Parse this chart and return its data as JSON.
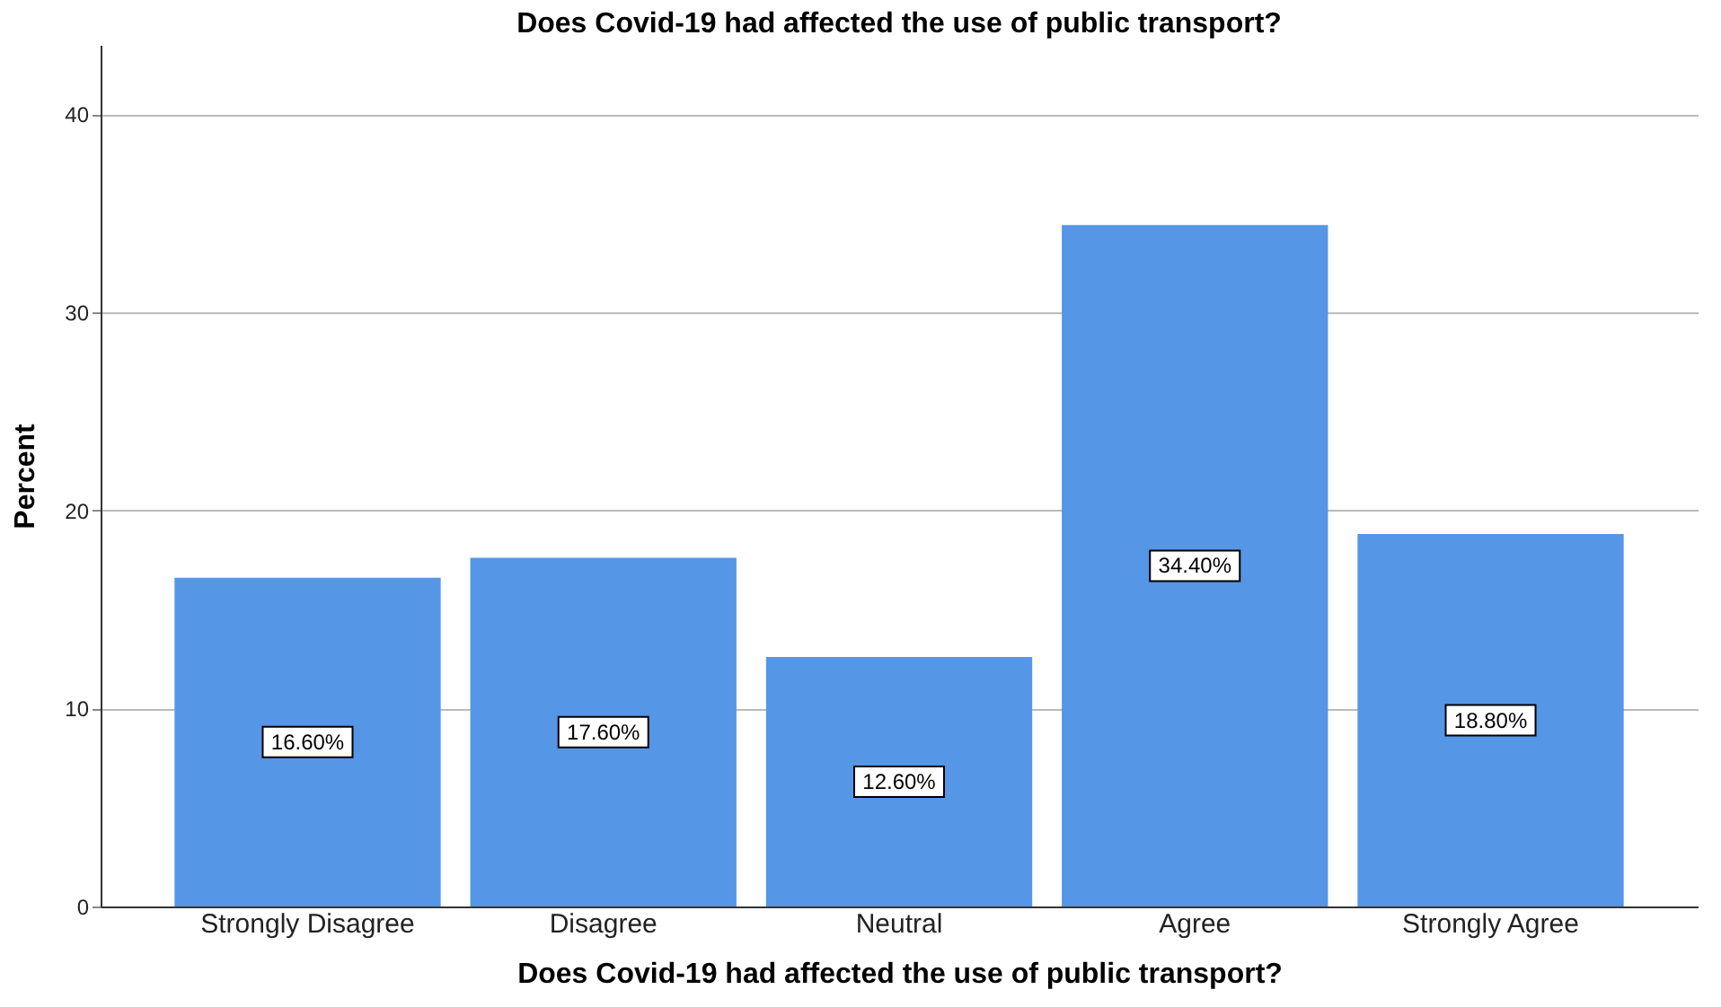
{
  "chart_data": {
    "type": "bar",
    "title": "Does Covid-19 had affected the use of public transport?",
    "xlabel": "Does Covid-19 had affected the use of public transport?",
    "ylabel": "Percent",
    "categories": [
      "Strongly Disagree",
      "Disagree",
      "Neutral",
      "Agree",
      "Strongly Agree"
    ],
    "values": [
      16.6,
      17.6,
      12.6,
      34.4,
      18.8
    ],
    "value_labels": [
      "16.60%",
      "17.60%",
      "12.60%",
      "34.40%",
      "18.80%"
    ],
    "color": "#5596e6",
    "ylim": [
      0,
      43.5
    ],
    "yticks": [
      0,
      10,
      20,
      30,
      40
    ],
    "grid": "y"
  }
}
